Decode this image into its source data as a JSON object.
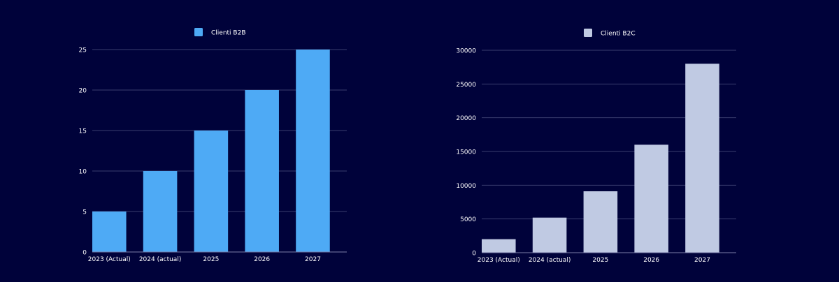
{
  "colors": {
    "background": "#00023a",
    "grid": "#3a3d6e",
    "axis": "#7b7fa8",
    "text": "#ffffff"
  },
  "chart_data": [
    {
      "type": "bar",
      "title": "",
      "xlabel": "",
      "ylabel": "",
      "categories": [
        "2023 (Actual)",
        "2024 (actual)",
        "2025",
        "2026",
        "2027"
      ],
      "series": [
        {
          "name": "Clienti B2B",
          "color": "#4eaaf5",
          "values": [
            5,
            10,
            15,
            20,
            25
          ]
        }
      ],
      "ylim": [
        0,
        25
      ],
      "yticks": [
        0,
        5,
        10,
        15,
        20,
        25
      ],
      "grid": true,
      "legend_position": "top-center"
    },
    {
      "type": "bar",
      "title": "",
      "xlabel": "",
      "ylabel": "",
      "categories": [
        "2023 (Actual)",
        "2024 (actual)",
        "2025",
        "2026",
        "2027"
      ],
      "series": [
        {
          "name": "Clienti B2C",
          "color": "#c0cae3",
          "values": [
            2000,
            5200,
            9100,
            16000,
            28000
          ]
        }
      ],
      "ylim": [
        0,
        30000
      ],
      "yticks": [
        0,
        5000,
        10000,
        15000,
        20000,
        25000,
        30000
      ],
      "grid": true,
      "legend_position": "top-center"
    }
  ]
}
